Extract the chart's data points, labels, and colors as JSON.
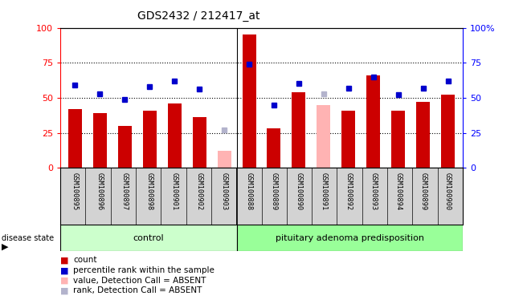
{
  "title": "GDS2432 / 212417_at",
  "samples": [
    "GSM100895",
    "GSM100896",
    "GSM100897",
    "GSM100898",
    "GSM100901",
    "GSM100902",
    "GSM100903",
    "GSM100888",
    "GSM100889",
    "GSM100890",
    "GSM100891",
    "GSM100892",
    "GSM100893",
    "GSM100894",
    "GSM100899",
    "GSM100900"
  ],
  "count_values": [
    42,
    39,
    30,
    41,
    46,
    36,
    null,
    95,
    28,
    54,
    null,
    41,
    66,
    41,
    47,
    52
  ],
  "count_absent": [
    null,
    null,
    null,
    null,
    null,
    null,
    12,
    null,
    null,
    null,
    45,
    null,
    null,
    null,
    null,
    null
  ],
  "percentile_values": [
    59,
    53,
    49,
    58,
    62,
    56,
    null,
    74,
    45,
    60,
    null,
    57,
    65,
    52,
    57,
    62
  ],
  "percentile_absent": [
    null,
    null,
    null,
    null,
    null,
    null,
    27,
    null,
    null,
    null,
    53,
    null,
    null,
    null,
    null,
    null
  ],
  "group_labels": [
    "control",
    "pituitary adenoma predisposition"
  ],
  "group_control_count": 7,
  "group_total": 16,
  "bar_color_present": "#cc0000",
  "bar_color_absent": "#ffb3b3",
  "dot_color_present": "#0000cc",
  "dot_color_absent": "#b3b3cc",
  "group_control_color": "#ccffcc",
  "group_disease_color": "#99ff99",
  "sample_bg_color": "#d3d3d3",
  "ylim": [
    0,
    100
  ],
  "yticks": [
    0,
    25,
    50,
    75,
    100
  ],
  "bar_width": 0.55
}
